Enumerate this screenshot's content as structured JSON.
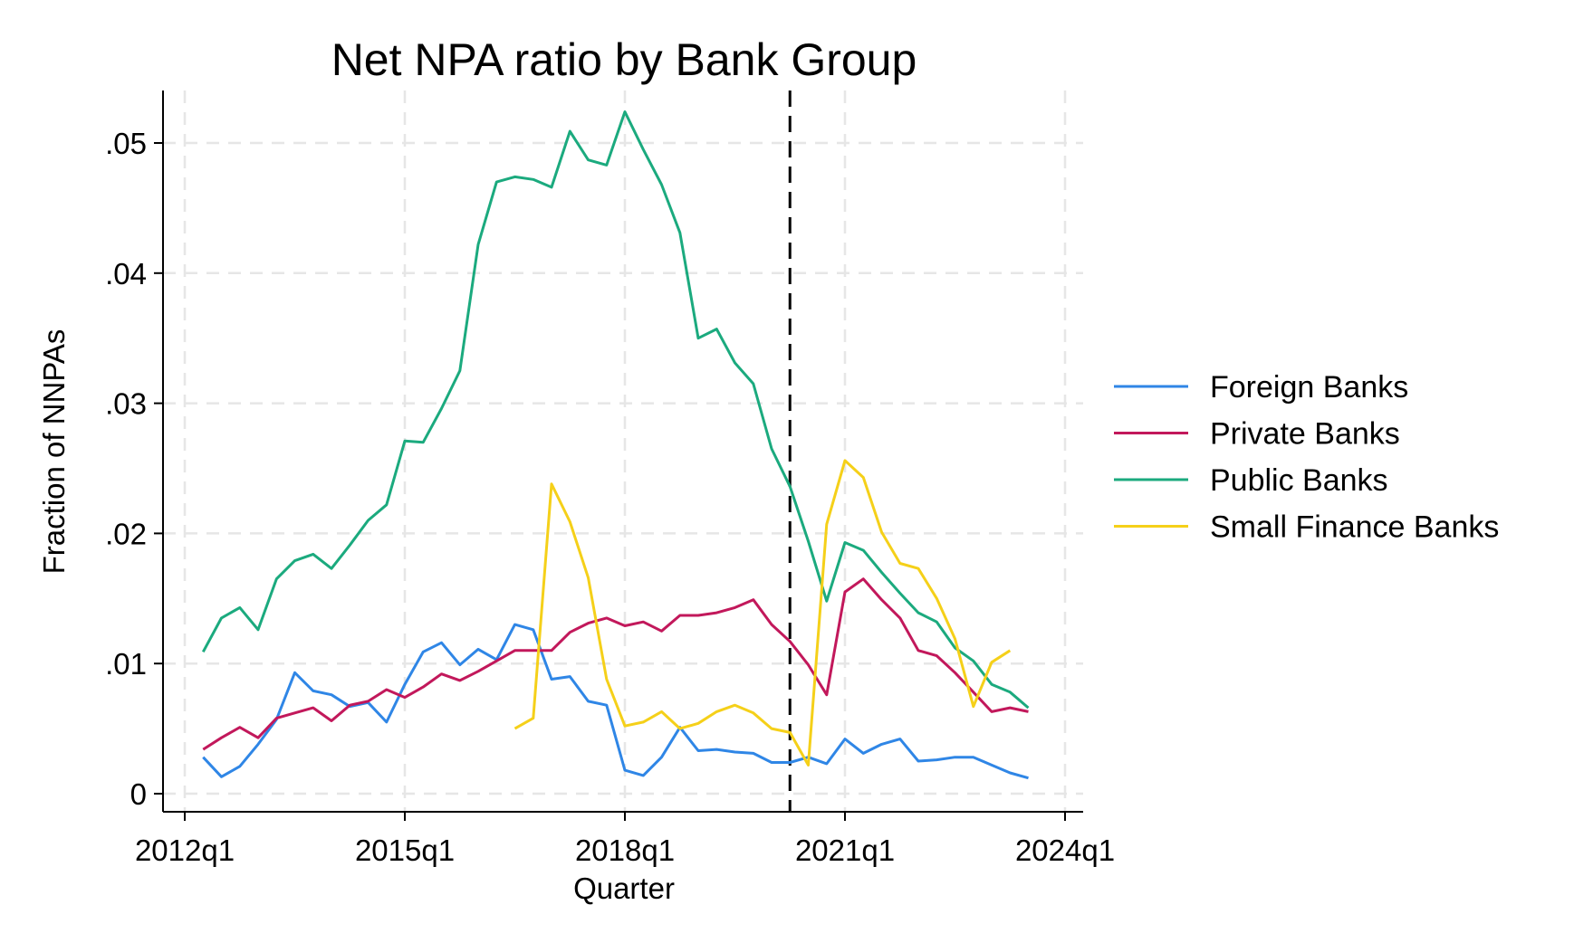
{
  "chart_data": {
    "type": "line",
    "title": "Net NPA ratio by Bank Group",
    "xlabel": "Quarter",
    "ylabel": "Fraction of NNPAs",
    "x_range": [
      "2012q1",
      "2024q1"
    ],
    "ylim": [
      0,
      0.05
    ],
    "x_ticks": [
      "2012q1",
      "2015q1",
      "2018q1",
      "2021q1",
      "2024q1"
    ],
    "y_ticks": [
      {
        "value": 0,
        "label": "0"
      },
      {
        "value": 0.01,
        "label": ".01"
      },
      {
        "value": 0.02,
        "label": ".02"
      },
      {
        "value": 0.03,
        "label": ".03"
      },
      {
        "value": 0.04,
        "label": ".04"
      },
      {
        "value": 0.05,
        "label": ".05"
      }
    ],
    "grid": true,
    "legend_position": "right",
    "vertical_reference_line": {
      "x": "2020q2",
      "style": "dashed",
      "color": "#000000"
    },
    "series": [
      {
        "name": "Foreign Banks",
        "color": "#2F86E6",
        "start": "2012q2",
        "values": [
          0.0028,
          0.0013,
          0.0021,
          0.0038,
          0.0057,
          0.0093,
          0.0079,
          0.0076,
          0.0067,
          0.007,
          0.0055,
          0.0084,
          0.0109,
          0.0116,
          0.0099,
          0.0111,
          0.0103,
          0.013,
          0.0126,
          0.0088,
          0.009,
          0.0071,
          0.0068,
          0.0018,
          0.0014,
          0.0028,
          0.0051,
          0.0033,
          0.0034,
          0.0032,
          0.0031,
          0.0024,
          0.0024,
          0.0028,
          0.0023,
          0.0042,
          0.0031,
          0.0038,
          0.0042,
          0.0025,
          0.0026,
          0.0028,
          0.0028,
          0.0022,
          0.0016,
          0.0012
        ]
      },
      {
        "name": "Private Banks",
        "color": "#C2185B",
        "start": "2012q2",
        "values": [
          0.0034,
          0.0043,
          0.0051,
          0.0043,
          0.0058,
          0.0062,
          0.0066,
          0.0056,
          0.0068,
          0.0071,
          0.008,
          0.0074,
          0.0082,
          0.0092,
          0.0087,
          0.0094,
          0.0102,
          0.011,
          0.011,
          0.011,
          0.0124,
          0.0131,
          0.0135,
          0.0129,
          0.0132,
          0.0125,
          0.0137,
          0.0137,
          0.0139,
          0.0143,
          0.0149,
          0.013,
          0.0117,
          0.0099,
          0.0076,
          0.0155,
          0.0165,
          0.0149,
          0.0135,
          0.011,
          0.0106,
          0.0093,
          0.0078,
          0.0063,
          0.0066,
          0.0063
        ]
      },
      {
        "name": "Public Banks",
        "color": "#1BAA7E",
        "start": "2012q2",
        "values": [
          0.0109,
          0.0135,
          0.0143,
          0.0126,
          0.0165,
          0.0179,
          0.0184,
          0.0173,
          0.0191,
          0.021,
          0.0222,
          0.0271,
          0.027,
          0.0296,
          0.0325,
          0.0422,
          0.047,
          0.0474,
          0.0472,
          0.0466,
          0.0509,
          0.0487,
          0.0483,
          0.0524,
          0.0495,
          0.0468,
          0.0431,
          0.035,
          0.0357,
          0.0331,
          0.0315,
          0.0265,
          0.0236,
          0.0194,
          0.0148,
          0.0193,
          0.0187,
          0.017,
          0.0154,
          0.0139,
          0.0132,
          0.0112,
          0.0102,
          0.0084,
          0.0078,
          0.0066
        ]
      },
      {
        "name": "Small Finance Banks",
        "color": "#F5D019",
        "start": "2016q3",
        "values": [
          0.005,
          0.0058,
          0.0238,
          0.0209,
          0.0166,
          0.0088,
          0.0052,
          0.0055,
          0.0063,
          0.005,
          0.0054,
          0.0063,
          0.0068,
          0.0062,
          0.005,
          0.0047,
          0.0022,
          0.0207,
          0.0256,
          0.0243,
          0.0201,
          0.0177,
          0.0173,
          0.015,
          0.0119,
          0.0067,
          0.0101,
          0.011
        ]
      }
    ]
  }
}
